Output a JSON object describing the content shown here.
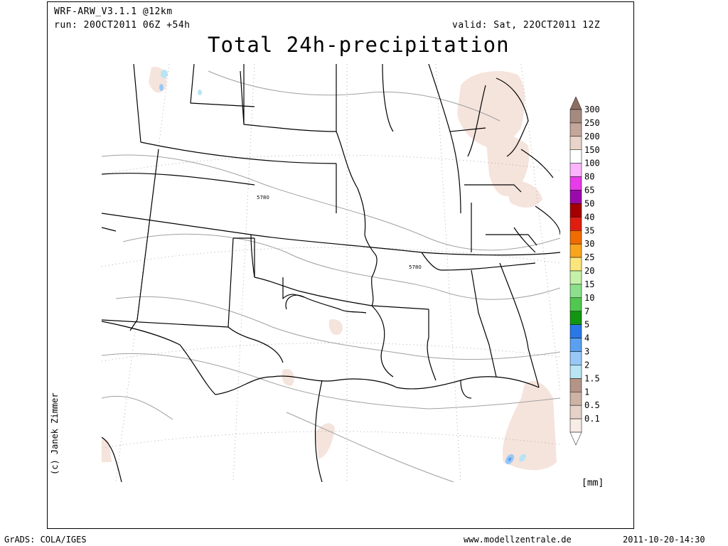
{
  "header": {
    "model": "WRF-ARW_V3.1.1 @12km",
    "run": "run: 20OCT2011 06Z +54h",
    "valid": "valid: Sat, 22OCT2011 12Z",
    "title": "Total 24h-precipitation"
  },
  "credit": "(c) Janek Zimmer",
  "map": {
    "contour_labels": [
      "5780",
      "5780"
    ],
    "colors": {
      "background": "#ffffff",
      "borders": "#000000",
      "contours": "#a0a0a0",
      "gridlines": "#999999",
      "precip_light": "#f5e4dc"
    }
  },
  "legend": {
    "unit": "[mm]",
    "levels": [
      {
        "label": "300",
        "color": "#a58a80"
      },
      {
        "label": "250",
        "color": "#c4a69a"
      },
      {
        "label": "200",
        "color": "#e8d4c9"
      },
      {
        "label": "150",
        "color": "#ffffff"
      },
      {
        "label": "100",
        "color": "#fcb4fc"
      },
      {
        "label": "80",
        "color": "#e83ce8"
      },
      {
        "label": "65",
        "color": "#9a0aaa"
      },
      {
        "label": "50",
        "color": "#a50000"
      },
      {
        "label": "40",
        "color": "#e01e10"
      },
      {
        "label": "35",
        "color": "#f06c00"
      },
      {
        "label": "30",
        "color": "#f7a51c"
      },
      {
        "label": "25",
        "color": "#fbe57c"
      },
      {
        "label": "20",
        "color": "#c5f2a8"
      },
      {
        "label": "15",
        "color": "#8ce08c"
      },
      {
        "label": "10",
        "color": "#50c850"
      },
      {
        "label": "7",
        "color": "#129612"
      },
      {
        "label": "5",
        "color": "#2a78e8"
      },
      {
        "label": "4",
        "color": "#5aa0f0"
      },
      {
        "label": "3",
        "color": "#98c8f8"
      },
      {
        "label": "2",
        "color": "#b8e4f4"
      },
      {
        "label": "1.5",
        "color": "#b49488"
      },
      {
        "label": "1",
        "color": "#cdb2a6"
      },
      {
        "label": "0.5",
        "color": "#e6d2c8"
      },
      {
        "label": "0.1",
        "color": "#f8ece6"
      }
    ]
  },
  "footer": {
    "software": "GrADS: COLA/IGES",
    "website": "www.modellzentrale.de",
    "timestamp": "2011-10-20-14:30"
  }
}
